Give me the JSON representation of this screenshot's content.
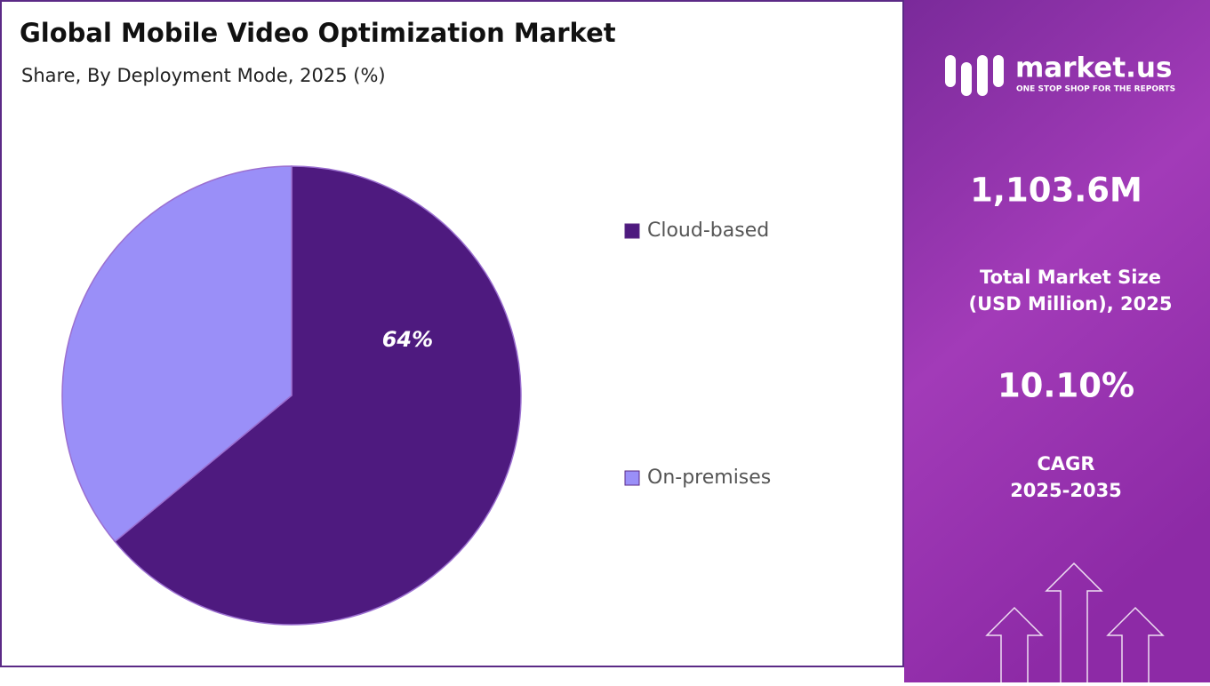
{
  "chart_data": {
    "type": "pie",
    "title": "Global Mobile Video Optimization Market",
    "subtitle": "Share, By Deployment Mode, 2025 (%)",
    "categories": [
      "Cloud-based",
      "On-premises"
    ],
    "values": [
      64,
      36
    ],
    "value_labels": [
      "64%",
      null
    ],
    "colors": [
      "#4e1a7f",
      "#9a8ff8"
    ],
    "legend": "right"
  },
  "panel": {
    "brand": "market.us",
    "tagline": "ONE STOP SHOP FOR THE REPORTS",
    "market_size": "1,103.6M",
    "market_size_label": [
      "Total Market Size",
      "(USD Million), 2025"
    ],
    "cagr": "10.10%",
    "cagr_label": [
      "CAGR",
      "2025-2035"
    ]
  }
}
